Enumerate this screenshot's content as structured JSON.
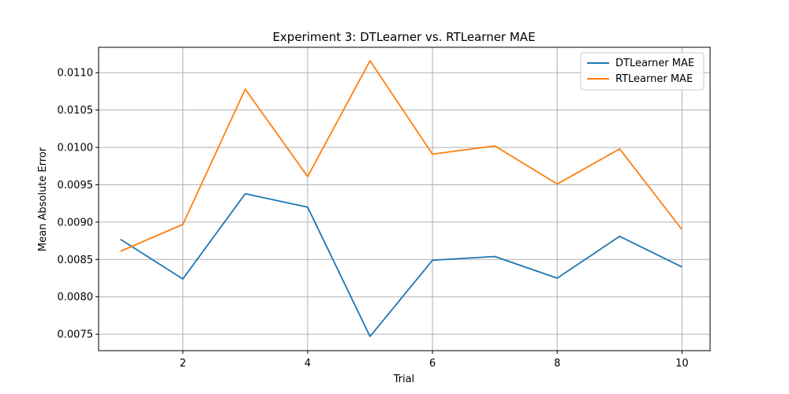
{
  "chart_data": {
    "type": "line",
    "title": "Experiment 3: DTLearner vs. RTLearner MAE",
    "xlabel": "Trial",
    "ylabel": "Mean Absolute Error",
    "x": [
      1,
      2,
      3,
      4,
      5,
      6,
      7,
      8,
      9,
      10
    ],
    "xlim": [
      0.65,
      10.45
    ],
    "ylim": [
      0.00728,
      0.01134
    ],
    "xticks": [
      2,
      4,
      6,
      8,
      10
    ],
    "xtick_labels": [
      "2",
      "4",
      "6",
      "8",
      "10"
    ],
    "yticks": [
      0.0075,
      0.008,
      0.0085,
      0.009,
      0.0095,
      0.01,
      0.0105,
      0.011
    ],
    "ytick_labels": [
      "0.0075",
      "0.0080",
      "0.0085",
      "0.0090",
      "0.0095",
      "0.0100",
      "0.0105",
      "0.0110"
    ],
    "grid": true,
    "legend_position": "top-right",
    "series": [
      {
        "name": "DTLearner MAE",
        "color": "#1f77b4",
        "values": [
          0.00877,
          0.00824,
          0.00938,
          0.0092,
          0.00747,
          0.00849,
          0.00854,
          0.00825,
          0.00881,
          0.0084
        ]
      },
      {
        "name": "RTLearner MAE",
        "color": "#ff7f0e",
        "values": [
          0.00861,
          0.00897,
          0.01078,
          0.00961,
          0.01116,
          0.00991,
          0.01002,
          0.00951,
          0.00998,
          0.0089
        ]
      }
    ]
  }
}
